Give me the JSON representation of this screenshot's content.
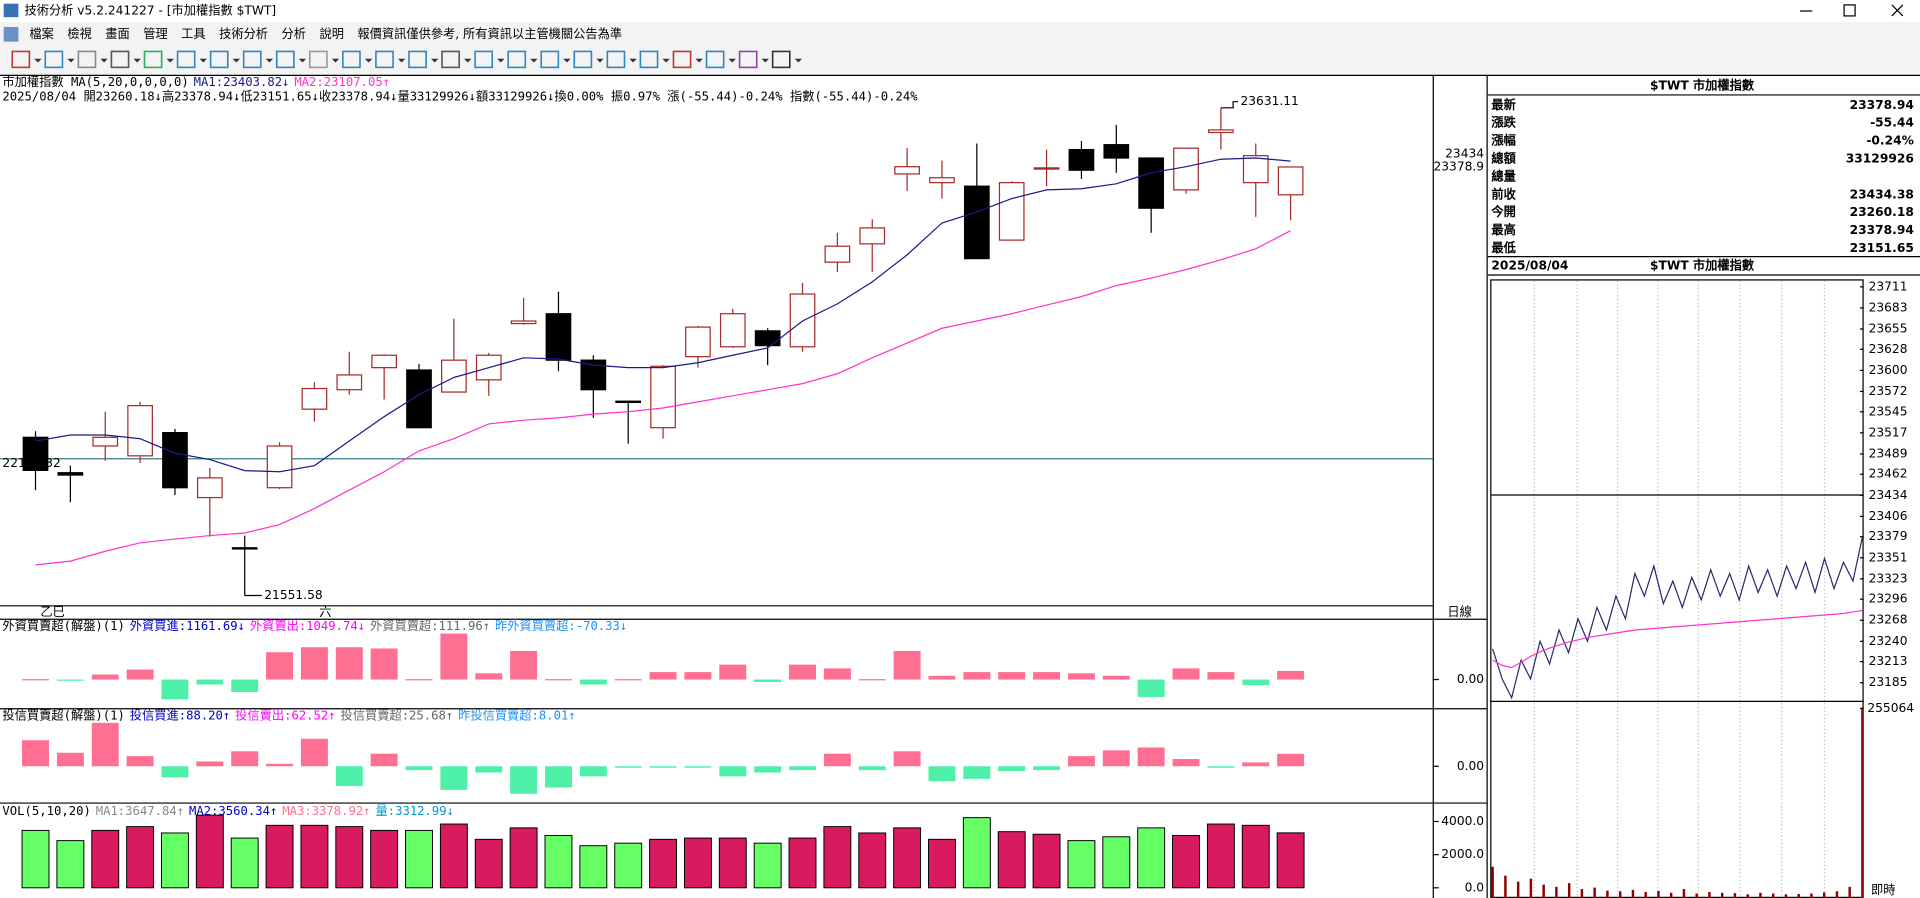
{
  "window": {
    "title": "技術分析 v5.2.241227 - [市加權指數 $TWT]"
  },
  "menu": [
    "檔案",
    "檢視",
    "畫面",
    "管理",
    "工具",
    "技術分析",
    "分析",
    "說明",
    "報價資訊僅供參考, 所有資訊以主管機關公告為準"
  ],
  "quote": {
    "title": "$TWT 市加權指數",
    "rows": [
      {
        "label": "最新",
        "value": "23378.94",
        "color": "#008000"
      },
      {
        "label": "漲跌",
        "value": "-55.44",
        "color": "#008000"
      },
      {
        "label": "漲幅",
        "value": "-0.24%",
        "color": "#008000"
      },
      {
        "label": "總額",
        "value": "33129926",
        "color": "#000000"
      },
      {
        "label": "總量"
      },
      {
        "label": "前收",
        "value": "23434.38",
        "color": "#000000"
      },
      {
        "label": "今開",
        "value": "23260.18",
        "color": "#008000"
      },
      {
        "label": "最高",
        "value": "23378.94",
        "color": "#008000"
      },
      {
        "label": "最低",
        "value": "23151.65",
        "color": "#008000"
      }
    ]
  },
  "chart_data": [
    {
      "type": "candlestick",
      "title": "市加權指數 MA(5,20,0,0,0,0)",
      "header_info": "2025/08/04 開23260.18↓高23378.94↓低23151.65↓收23378.94↓量33129926↓額33129926↓換0.00% 振0.97% 漲(-55.44)-0.24% 指數(-55.44)-0.24%",
      "categories": [
        "乙巳",
        null,
        null,
        null,
        null,
        null,
        null,
        null,
        "六",
        null,
        null,
        null,
        null,
        null,
        null,
        null,
        null,
        null,
        null,
        null,
        null,
        null,
        null,
        null,
        null,
        null,
        null,
        null,
        null,
        null,
        null,
        null,
        null,
        null,
        null,
        null,
        null
      ],
      "open": [
        22226,
        22075,
        22189,
        22147,
        22246,
        21969,
        21755,
        22011,
        22346,
        22429,
        22523,
        22513,
        22419,
        22471,
        22711,
        22753,
        22555,
        22380,
        22267,
        22570,
        22612,
        22680,
        22612,
        22973,
        23051,
        23349,
        23312,
        23297,
        23067,
        23370,
        23453,
        23474,
        23417,
        23281,
        23526,
        23312,
        23260.18
      ],
      "high": [
        22252,
        22105,
        22335,
        22377,
        22262,
        22095,
        21807,
        22205,
        22461,
        22591,
        22580,
        22539,
        22732,
        22586,
        22821,
        22847,
        22576,
        22380,
        22534,
        22701,
        22774,
        22691,
        22884,
        23098,
        23156,
        23459,
        23406,
        23479,
        23318,
        23453,
        23490,
        23558,
        23417,
        23459,
        23631.11,
        23479,
        23378.94
      ],
      "low": [
        22001,
        21949,
        22126,
        22116,
        21980,
        21802,
        21551.58,
        22005,
        22293,
        22408,
        22387,
        22267,
        22419,
        22403,
        22706,
        22508,
        22309,
        22199,
        22220,
        22523,
        22607,
        22534,
        22591,
        22931,
        22931,
        23276,
        23244,
        22988,
        23067,
        23297,
        23328,
        23354,
        23098,
        23265,
        23453,
        23166,
        23151.65
      ],
      "close": [
        22085,
        22065,
        22226,
        22361,
        22011,
        22053,
        21750,
        22189,
        22434,
        22492,
        22576,
        22267,
        22555,
        22576,
        22722,
        22555,
        22429,
        22377,
        22529,
        22696,
        22753,
        22617,
        22837,
        23041,
        23119,
        23380,
        23333,
        22988,
        23312,
        23375,
        23365,
        23417,
        23203,
        23459,
        23537,
        23427,
        23378.94
      ],
      "series": [
        {
          "name": "MA1:23403.82↓",
          "color": "#1a1a8c",
          "values": [
            22210,
            22236,
            22236,
            22220,
            22158,
            22131,
            22084,
            22079,
            22105,
            22210,
            22314,
            22408,
            22481,
            22523,
            22565,
            22560,
            22534,
            22523,
            22523,
            22544,
            22576,
            22607,
            22722,
            22795,
            22889,
            23004,
            23140,
            23187,
            23244,
            23281,
            23286,
            23307,
            23354,
            23380,
            23412,
            23417,
            23403.82
          ]
        },
        {
          "name": "MA2:23107.05↑",
          "color": "#ff33cc",
          "values": [
            21682,
            21698,
            21740,
            21776,
            21792,
            21807,
            21818,
            21854,
            21922,
            22001,
            22079,
            22168,
            22220,
            22283,
            22299,
            22309,
            22325,
            22335,
            22351,
            22377,
            22403,
            22429,
            22455,
            22497,
            22565,
            22628,
            22691,
            22722,
            22753,
            22790,
            22826,
            22873,
            22905,
            22941,
            22983,
            23030,
            23107.05
          ]
        }
      ],
      "ylim": [
        21510,
        23767
      ],
      "yticks": [
        23434,
        {
          "value": 23378.94,
          "label": "23378.9"
        }
      ],
      "ref_line": 22134.32,
      "period_label": "日線",
      "colors": {
        "up": "#a52a2a",
        "down": "#000000"
      }
    },
    {
      "type": "bar",
      "title": "外資買賣超(解盤)(1)",
      "legend": [
        {
          "text": "外資買進:1161.69↓",
          "color": "#0000cc"
        },
        {
          "text": "外資賣出:1049.74↓",
          "color": "#ff00ff"
        },
        {
          "text": "外資買賣超:111.96↑",
          "color": "#666666"
        },
        {
          "text": "昨外資買賣超:-70.33↓",
          "color": "#1e90ff"
        }
      ],
      "values": [
        5,
        -5,
        64,
        128,
        -256,
        -64,
        -160,
        352,
        416,
        416,
        400,
        5,
        592,
        80,
        368,
        5,
        -64,
        5,
        96,
        96,
        192,
        -32,
        192,
        144,
        5,
        368,
        48,
        96,
        96,
        96,
        80,
        48,
        -224,
        144,
        96,
        -70.33,
        111.96
      ],
      "ylim": [
        -352,
        768
      ],
      "yticks": [
        {
          "value": 0,
          "label": "0.00"
        }
      ],
      "colors": {
        "up": "#ff6f91",
        "down": "#4ef0a8"
      }
    },
    {
      "type": "bar",
      "title": "投信買賣超(解盤)(1)",
      "legend": [
        {
          "text": "投信買進:88.20↑",
          "color": "#0000cc"
        },
        {
          "text": "投信賣出:62.52↑",
          "color": "#ff00ff"
        },
        {
          "text": "投信買賣超:25.68↑",
          "color": "#666666"
        },
        {
          "text": "昨投信買賣超:8.01↑",
          "color": "#1e90ff"
        }
      ],
      "values": [
        54,
        28,
        90,
        21,
        -23,
        10,
        31,
        5,
        57,
        -41,
        26,
        -8,
        -49,
        -13,
        -57,
        -44,
        -21,
        -3,
        -3,
        -3,
        -21,
        -13,
        -8,
        26,
        -8,
        31,
        -31,
        -26,
        -10,
        -8,
        21,
        33,
        39,
        15,
        -3,
        8.01,
        25.68
      ],
      "ylim": [
        -75,
        118
      ],
      "yticks": [
        {
          "value": 0,
          "label": "0.00"
        }
      ],
      "colors": {
        "up": "#ff6f91",
        "down": "#4ef0a8"
      }
    },
    {
      "type": "volume",
      "title": "VOL(5,10,20)",
      "legend": [
        {
          "text": "MA1:3647.84↑",
          "color": "#888888"
        },
        {
          "text": "MA2:3560.34↑",
          "color": "#0000cc"
        },
        {
          "text": "MA3:3378.92↑",
          "color": "#ff6f91"
        },
        {
          "text": "量:3312.99↓",
          "color": "#0099cc"
        }
      ],
      "values": [
        3461,
        2845,
        3461,
        3691,
        3307,
        4383,
        2999,
        3768,
        3768,
        3691,
        3461,
        3461,
        3845,
        2922,
        3614,
        3153,
        2538,
        2692,
        2922,
        2999,
        2999,
        2692,
        2999,
        3691,
        3307,
        3614,
        2922,
        4230,
        3384,
        3230,
        2845,
        3076,
        3614,
        3153,
        3845,
        3768,
        3312.99
      ],
      "ylim": [
        -615,
        5000
      ],
      "yticks": [
        {
          "value": 4000,
          "label": "4000.0"
        },
        {
          "value": 2000,
          "label": "2000.0"
        },
        {
          "value": 0,
          "label": "0.0"
        }
      ],
      "colors": {
        "up": "#d81b60",
        "down": "#66ff66"
      }
    },
    {
      "type": "line",
      "title": "$TWT 市加權指數",
      "date": "2025/08/04",
      "series": [
        {
          "color": "#2a2a6e",
          "values": [
            23230,
            23190,
            23165,
            23215,
            23190,
            23240,
            23210,
            23255,
            23225,
            23270,
            23240,
            23285,
            23255,
            23300,
            23270,
            23330,
            23300,
            23340,
            23290,
            23320,
            23285,
            23325,
            23295,
            23335,
            23300,
            23330,
            23295,
            23340,
            23305,
            23335,
            23300,
            23340,
            23310,
            23345,
            23305,
            23350,
            23310,
            23345,
            23320,
            23378.94
          ]
        },
        {
          "color": "#ff33cc",
          "values": [
            23215,
            23208,
            23205,
            23212,
            23220,
            23226,
            23231,
            23235,
            23239,
            23242,
            23245,
            23247,
            23249,
            23251,
            23253,
            23255,
            23256,
            23257,
            23258,
            23259,
            23260,
            23261,
            23262,
            23263,
            23264,
            23265,
            23266,
            23267,
            23268,
            23269,
            23270,
            23271,
            23272,
            23273,
            23274,
            23275,
            23276,
            23277,
            23279,
            23281
          ]
        }
      ],
      "ylim": [
        23161,
        23721
      ],
      "yticks": [
        23711,
        23683,
        23655,
        23628,
        23600,
        23572,
        23545,
        23517,
        23489,
        23462,
        23434,
        23406,
        23379,
        23351,
        23323,
        23296,
        23268,
        23240,
        23213,
        23185
      ],
      "ref_line": 23434.38
    },
    {
      "type": "bar",
      "values": [
        42000,
        30000,
        22000,
        26000,
        18000,
        15000,
        20000,
        12000,
        14000,
        10000,
        9000,
        11000,
        8000,
        9500,
        7000,
        12000,
        6000,
        8000,
        7000,
        6500,
        5000,
        7000,
        6000,
        5000,
        5500,
        6000,
        7500,
        9000,
        15000,
        255064
      ],
      "ylim": [
        0,
        262000
      ],
      "yticks": [
        255064
      ],
      "time_label": "即時",
      "color": "#8b0000"
    }
  ]
}
